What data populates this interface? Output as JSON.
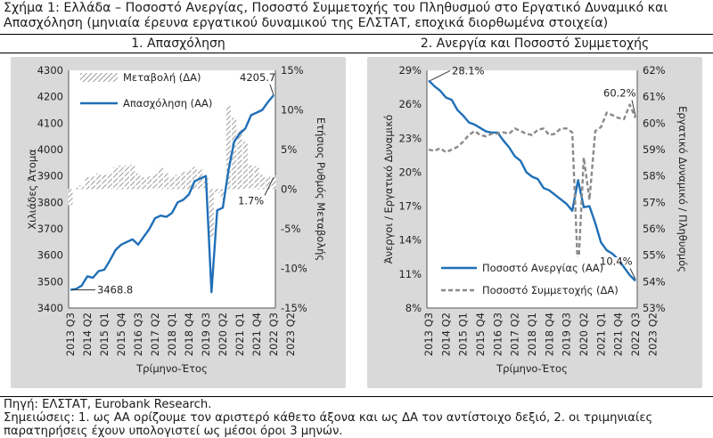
{
  "figure_title": "Σχήμα 1: Ελλάδα – Ποσοστό Ανεργίας, Ποσοστό Συμμετοχής του Πληθυσμού στο Εργατικό Δυναμικό και Απασχόληση (μηνιαία έρευνα εργατικού δυναμικού της ΕΛΣΤΑΤ, εποχικά διορθωμένα στοιχεία)",
  "source": "Πηγή: ΕΛΣΤΑΤ, Eurobank Research.",
  "notes": "Σημειώσεις: 1. ως ΑΑ ορίζουμε τον αριστερό κάθετο άξονα και ως ΔΑ τον αντίστοιχο δεξιό, 2. οι τριμηνιαίες παρατηρήσεις έχουν υπολογιστεί ως μέσοι όροι 3 μηνών.",
  "colors": {
    "employment": "#1f6fb7",
    "change": "#9a9a9a",
    "unemployment": "#1f6fb7",
    "participation": "#8a8a8a",
    "panel_bg": "#d9d9d9"
  },
  "chart_data": [
    {
      "type": "bar+line",
      "title": "1. Απασχόληση",
      "xlabel": "Τρίμηνο-Έτος",
      "ylabel": "Χιλιάδες Άτομα",
      "y2label": "Ετήσιος Ρυθμός Μεταβολής",
      "ylim": [
        3400,
        4300
      ],
      "y2lim": [
        -15,
        15
      ],
      "yticks": [
        "3400",
        "3500",
        "3600",
        "3700",
        "3800",
        "3900",
        "4000",
        "4100",
        "4200",
        "4300"
      ],
      "y2ticks": [
        "-15%",
        "-10%",
        "-5%",
        "0%",
        "5%",
        "10%",
        "15%"
      ],
      "x_tick_labels": [
        "2013 Q3",
        "2014 Q2",
        "2015 Q1",
        "2015 Q4",
        "2016 Q3",
        "2017 Q2",
        "2018 Q1",
        "2018 Q4",
        "2019 Q3",
        "2020 Q2",
        "2021 Q1",
        "2021 Q4",
        "2022 Q3",
        "2023 Q2"
      ],
      "legend": [
        "Μεταβολή (ΔΑ)",
        "Απασχόληση (ΑΑ)"
      ],
      "series": [
        {
          "name": "Απασχόληση (ΑΑ)",
          "axis": "left",
          "kind": "line",
          "values": [
            3468.8,
            3472,
            3485,
            3520,
            3515,
            3540,
            3545,
            3580,
            3620,
            3640,
            3650,
            3660,
            3640,
            3670,
            3700,
            3740,
            3750,
            3745,
            3760,
            3800,
            3810,
            3830,
            3880,
            3890,
            3900,
            3460,
            3770,
            3780,
            3920,
            4030,
            4060,
            4080,
            4130,
            4140,
            4150,
            4180,
            4205.7
          ]
        },
        {
          "name": "Μεταβολή (ΔΑ)",
          "axis": "right",
          "kind": "bar",
          "values": [
            -2.0,
            0.2,
            0.5,
            1.5,
            1.6,
            2.0,
            1.8,
            2.0,
            2.8,
            3.0,
            3.0,
            3.1,
            2.0,
            1.5,
            1.6,
            2.0,
            2.7,
            2.0,
            1.6,
            1.8,
            2.2,
            2.4,
            2.8,
            2.5,
            1.6,
            -6.0,
            -0.5,
            -1.3,
            10.5,
            9.0,
            7.6,
            6.0,
            3.0,
            2.9,
            1.8,
            1.6,
            1.7
          ]
        }
      ],
      "annotations": [
        "4205.7",
        "3468.8",
        "1.7%"
      ]
    },
    {
      "type": "line",
      "title": "2. Ανεργία και Ποσοστό Συμμετοχής",
      "xlabel": "Τρίμηνο-Έτος",
      "ylabel": "Άνεργοι / Εργατικό Δυναμικό",
      "y2label": "Εργατικό Δυναμικό / Πληθυσμός",
      "ylim": [
        8,
        29
      ],
      "y2lim": [
        53,
        62
      ],
      "yticks": [
        "8%",
        "11%",
        "14%",
        "17%",
        "20%",
        "23%",
        "26%",
        "29%"
      ],
      "y2ticks": [
        "53%",
        "54%",
        "55%",
        "56%",
        "57%",
        "58%",
        "59%",
        "60%",
        "61%",
        "62%"
      ],
      "x_tick_labels": [
        "2013 Q3",
        "2014 Q2",
        "2015 Q1",
        "2015 Q4",
        "2016 Q3",
        "2017 Q2",
        "2018 Q1",
        "2018 Q4",
        "2019 Q3",
        "2020 Q2",
        "2021 Q1",
        "2021 Q4",
        "2022 Q3",
        "2023 Q2"
      ],
      "legend": [
        "Ποσοστό Ανεργίας (ΑΑ)",
        "Ποσοστό Συμμετοχής (ΔΑ)"
      ],
      "series": [
        {
          "name": "Ποσοστό Ανεργίας (ΑΑ)",
          "axis": "left",
          "kind": "line",
          "values": [
            28.1,
            27.6,
            27.2,
            26.6,
            26.4,
            25.5,
            25.0,
            24.4,
            24.2,
            23.9,
            23.6,
            23.5,
            23.5,
            22.8,
            22.2,
            21.4,
            21.0,
            20.0,
            19.6,
            19.4,
            18.6,
            18.4,
            18.0,
            17.6,
            17.2,
            16.6,
            19.3,
            16.9,
            17.0,
            15.5,
            13.8,
            13.1,
            12.8,
            12.3,
            11.6,
            10.9,
            10.4
          ]
        },
        {
          "name": "Ποσοστό Συμμετοχής (ΔΑ)",
          "axis": "right",
          "kind": "line",
          "dash": true,
          "values": [
            59.0,
            58.95,
            59.05,
            58.9,
            59.0,
            59.1,
            59.3,
            59.55,
            59.7,
            59.55,
            59.5,
            59.6,
            59.6,
            59.65,
            59.6,
            59.8,
            59.7,
            59.6,
            59.55,
            59.75,
            59.8,
            59.55,
            59.6,
            59.8,
            59.8,
            59.65,
            54.3,
            58.7,
            57.1,
            59.7,
            59.85,
            60.4,
            60.3,
            60.2,
            60.15,
            60.7,
            60.2
          ]
        }
      ],
      "annotations": [
        "28.1%",
        "60.2%",
        "10.4%"
      ]
    }
  ]
}
